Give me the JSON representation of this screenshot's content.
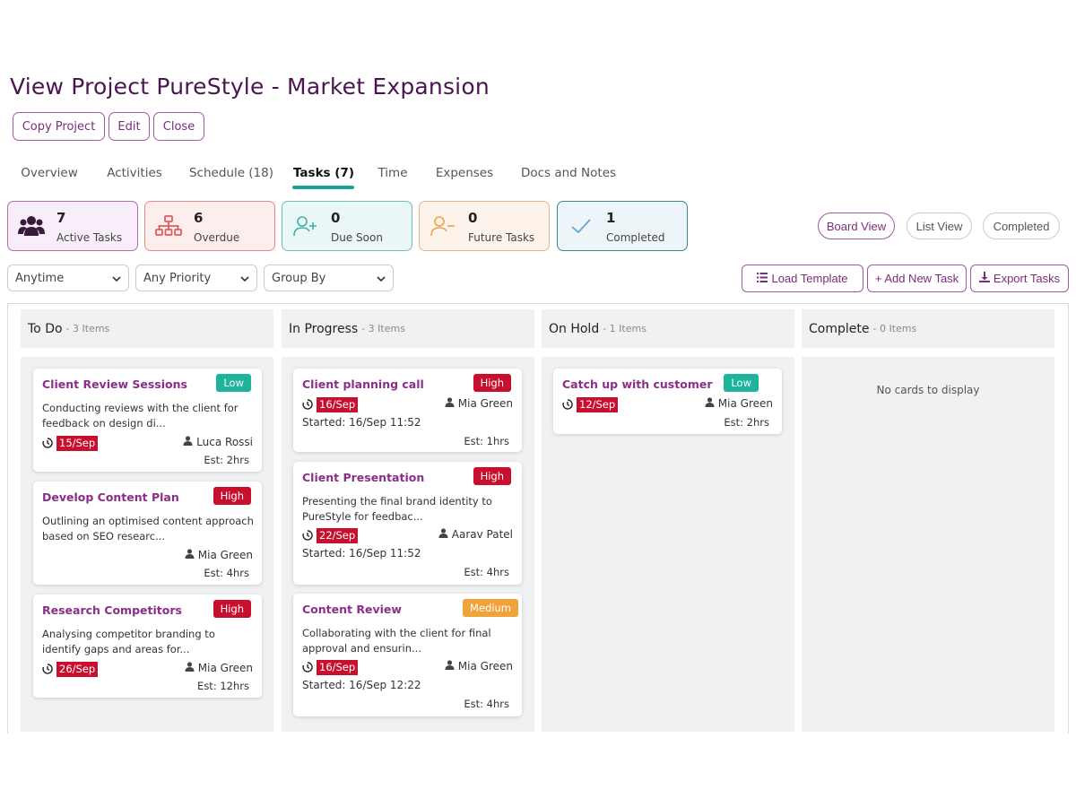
{
  "page": {
    "title": "View Project PureStyle - Market Expansion"
  },
  "actions": {
    "copy": "Copy Project",
    "edit": "Edit",
    "close": "Close"
  },
  "tabs": [
    "Overview",
    "Activities",
    "Schedule (18)",
    "Tasks (7)",
    "Time",
    "Expenses",
    "Docs and Notes"
  ],
  "active_tab": "Tasks (7)",
  "stats": [
    {
      "value": "7",
      "label": "Active Tasks",
      "icon": "people-icon",
      "bg": "#f8eefa",
      "border": "#b06db0"
    },
    {
      "value": "6",
      "label": "Overdue",
      "icon": "hierarchy-icon",
      "bg": "#fdeeee",
      "border": "#e38b8b"
    },
    {
      "value": "0",
      "label": "Due Soon",
      "icon": "add-user-icon",
      "bg": "#ebf7f6",
      "border": "#6ac0b8"
    },
    {
      "value": "0",
      "label": "Future Tasks",
      "icon": "remove-user-icon",
      "bg": "#fdf3ea",
      "border": "#e9b683"
    },
    {
      "value": "1",
      "label": "Completed",
      "icon": "check-icon",
      "bg": "#eef5f9",
      "border": "#3d8a8f"
    }
  ],
  "views": {
    "board": "Board View",
    "list": "List View",
    "completed": "Completed"
  },
  "filters": {
    "time": "Anytime",
    "priority": "Any Priority",
    "group": "Group By"
  },
  "tools": {
    "load": "Load Template",
    "add": "+ Add New Task",
    "export": "Export Tasks"
  },
  "colors": {
    "accent": "#7a2e7a",
    "low": "#1db39c",
    "high": "#c8102e",
    "medium": "#f0a23b",
    "tab_underline": "#1aa39a"
  },
  "columns": [
    {
      "name": "To Do",
      "count": "- 3 Items",
      "cards": [
        {
          "title": "Client Review Sessions",
          "priority": "Low",
          "desc1": "Conducting reviews with the client for",
          "desc2": "feedback on design di...",
          "due": "15/Sep",
          "owner": "Luca Rossi",
          "est": "Est: 2hrs"
        },
        {
          "title": "Develop Content Plan",
          "priority": "High",
          "desc1": "Outlining an optimised content approach",
          "desc2": "based on SEO researc...",
          "due": "",
          "owner": "Mia Green",
          "est": "Est: 4hrs"
        },
        {
          "title": "Research Competitors",
          "priority": "High",
          "desc1": "Analysing competitor branding to",
          "desc2": "identify gaps and areas for...",
          "due": "26/Sep",
          "owner": "Mia Green",
          "est": "Est: 12hrs"
        }
      ]
    },
    {
      "name": "In Progress",
      "count": "- 3 Items",
      "cards": [
        {
          "title": "Client planning call",
          "priority": "High",
          "due": "16/Sep",
          "owner": "Mia Green",
          "started": "Started: 16/Sep 11:52",
          "est": "Est: 1hrs"
        },
        {
          "title": "Client Presentation",
          "priority": "High",
          "desc1": "Presenting the final brand identity to",
          "desc2": "PureStyle for feedbac...",
          "due": "22/Sep",
          "owner": "Aarav Patel",
          "started": "Started: 16/Sep 11:52",
          "est": "Est: 4hrs"
        },
        {
          "title": "Content Review",
          "priority": "Medium",
          "desc1": "Collaborating with the client for final",
          "desc2": "approval and ensurin...",
          "due": "16/Sep",
          "owner": "Mia Green",
          "started": "Started: 16/Sep 12:22",
          "est": "Est: 4hrs"
        }
      ]
    },
    {
      "name": "On Hold",
      "count": "- 1 Items",
      "cards": [
        {
          "title": "Catch up with customer",
          "priority": "Low",
          "due": "12/Sep",
          "owner": "Mia Green",
          "est": "Est: 2hrs"
        }
      ]
    },
    {
      "name": "Complete",
      "count": "- 0 Items",
      "empty": "No cards to display",
      "cards": []
    }
  ]
}
